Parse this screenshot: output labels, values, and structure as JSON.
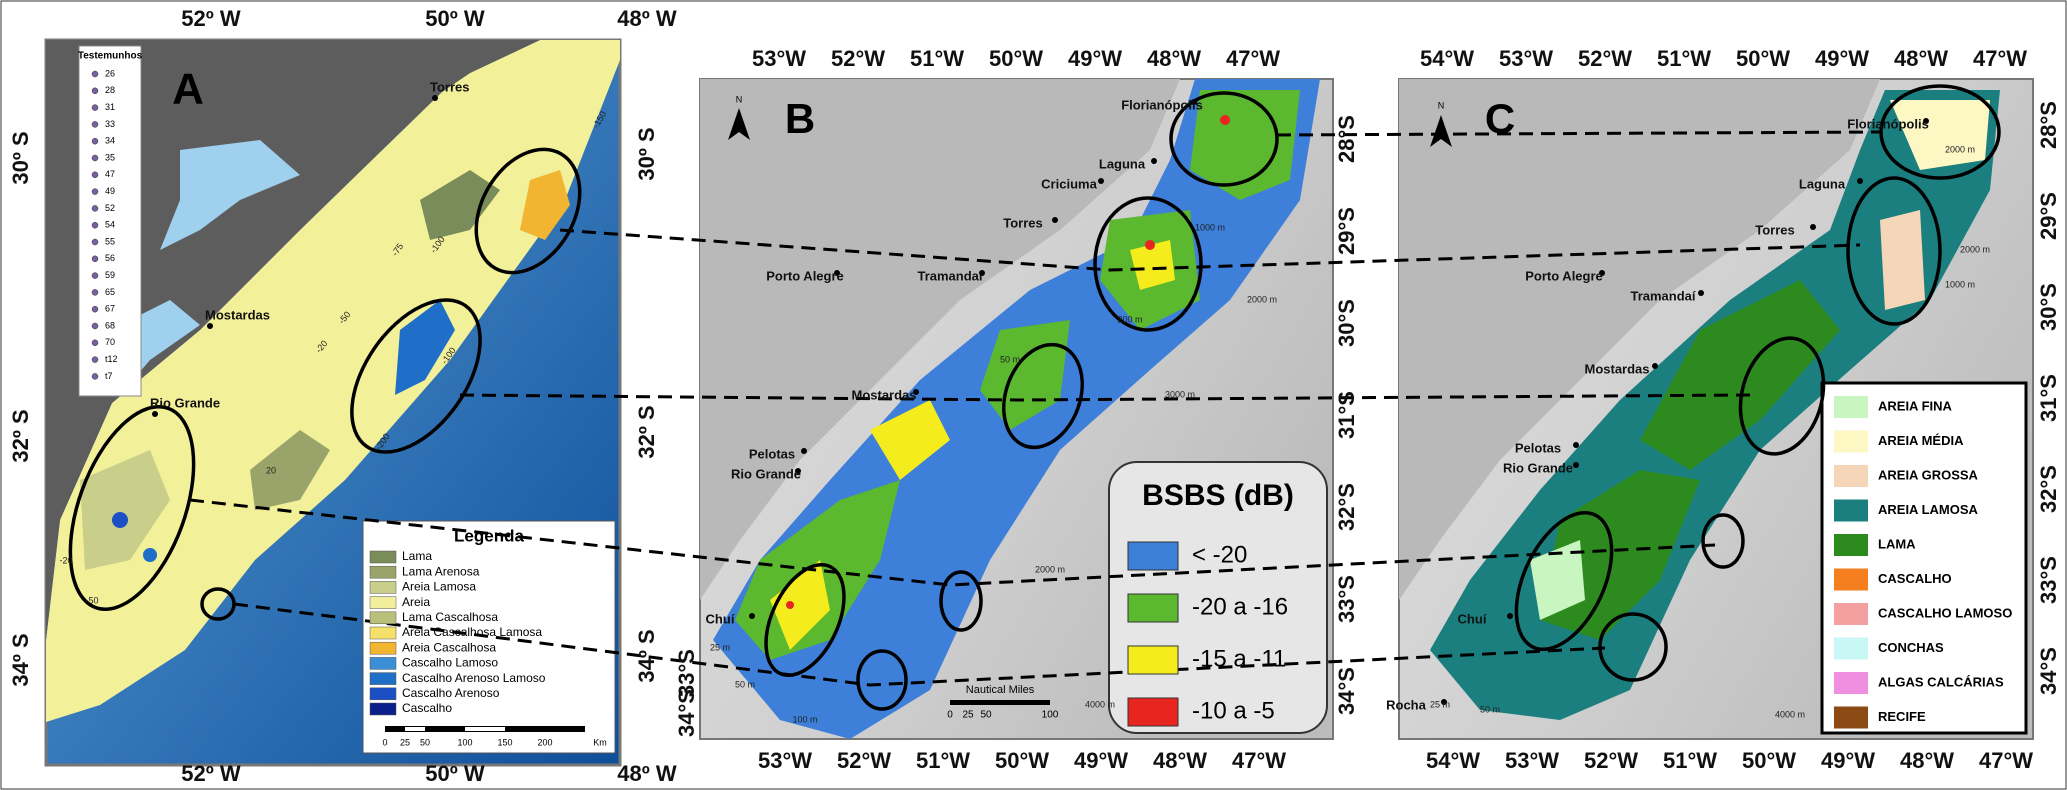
{
  "panel_a": {
    "label": "A",
    "top_ticks": [
      "52º W",
      "50º W",
      "48º W"
    ],
    "bottom_ticks": [
      "52º W",
      "50º W",
      "48º W"
    ],
    "left_ticks": [
      "30º S",
      "32º S",
      "34º S"
    ],
    "right_ticks": [
      "30º S",
      "32º S",
      "34º S"
    ],
    "places": [
      "Torres",
      "Mostardas",
      "Rio Grande"
    ],
    "contour_labels": [
      "-150",
      "-100",
      "-75",
      "-50",
      "-20",
      "-100",
      "-200",
      "-20",
      "-50",
      "20"
    ],
    "cores_title": "Testemunhos",
    "cores": [
      "26",
      "28",
      "31",
      "33",
      "34",
      "35",
      "47",
      "49",
      "52",
      "54",
      "55",
      "56",
      "59",
      "65",
      "67",
      "68",
      "70",
      "t12",
      "t7"
    ],
    "legend_title": "Legenda",
    "legend": [
      {
        "label": "Lama",
        "color": "#7a8c5a"
      },
      {
        "label": "Lama Arenosa",
        "color": "#9aa46a"
      },
      {
        "label": "Areia Lamosa",
        "color": "#c9cf8a"
      },
      {
        "label": "Areia",
        "color": "#f2ef9c"
      },
      {
        "label": "Lama Cascalhosa",
        "color": "#b8c07a"
      },
      {
        "label": "Areia Cascalhosa Lamosa",
        "color": "#f5e06a"
      },
      {
        "label": "Areia Cascalhosa",
        "color": "#f2b531"
      },
      {
        "label": "Cascalho Lamoso",
        "color": "#3b8fd6"
      },
      {
        "label": "Cascalho Arenoso Lamoso",
        "color": "#1f6fc9"
      },
      {
        "label": "Cascalho Arenoso",
        "color": "#1b4fc4"
      },
      {
        "label": "Cascalho",
        "color": "#0b1f8a"
      }
    ],
    "scale": [
      "0",
      "25",
      "50",
      "100",
      "150",
      "200",
      "Km"
    ]
  },
  "panel_b": {
    "label": "B",
    "north": "N",
    "top_ticks": [
      "53°W",
      "52°W",
      "51°W",
      "50°W",
      "49°W",
      "48°W",
      "47°W"
    ],
    "bottom_ticks": [
      "53°W",
      "52°W",
      "51°W",
      "50°W",
      "49°W",
      "48°W",
      "47°W"
    ],
    "left_ticks": [
      "33°S",
      "34°S"
    ],
    "right_ticks": [
      "28°S",
      "29°S",
      "30°S",
      "31°S",
      "32°S",
      "33°S",
      "34°S"
    ],
    "places": [
      "Florianópolis",
      "Laguna",
      "Criciuma",
      "Torres",
      "Porto Alegre",
      "Tramandaí",
      "Mostardas",
      "Pelotas",
      "Rio Grande",
      "Chuí"
    ],
    "isobaths": [
      "2000 m",
      "1000 m",
      "200 m",
      "50 m",
      "3000 m",
      "2000 m",
      "4000 m",
      "25 m",
      "50 m",
      "100 m"
    ],
    "legend_title": "BSBS (dB)",
    "legend": [
      {
        "label": "< -20",
        "color": "#3d7fd9"
      },
      {
        "label": "-20 a -16",
        "color": "#5bb82f"
      },
      {
        "label": "-15 a -11",
        "color": "#f5ec1e"
      },
      {
        "label": "-10 a -5",
        "color": "#e8261f"
      }
    ],
    "scale_title": "Nautical Miles",
    "scale": [
      "0",
      "25",
      "50",
      "100"
    ]
  },
  "panel_c": {
    "label": "C",
    "north": "N",
    "top_ticks": [
      "54°W",
      "53°W",
      "52°W",
      "51°W",
      "50°W",
      "49°W",
      "48°W",
      "47°W"
    ],
    "bottom_ticks": [
      "54°W",
      "53°W",
      "52°W",
      "51°W",
      "50°W",
      "49°W",
      "48°W",
      "47°W"
    ],
    "right_ticks": [
      "28°S",
      "29°S",
      "30°S",
      "31°S",
      "32°S",
      "33°S",
      "34°S"
    ],
    "places": [
      "Florianópolis",
      "Laguna",
      "Torres",
      "Porto Alegre",
      "Tramandaí",
      "Mostardas",
      "Pelotas",
      "Rio Grande",
      "Chuí",
      "Rocha"
    ],
    "isobaths": [
      "2000 m",
      "1000 m",
      "2000 m",
      "4000 m",
      "25 m",
      "50 m"
    ],
    "legend": [
      {
        "label": "AREIA FINA",
        "color": "#c8f5c0"
      },
      {
        "label": "AREIA MÉDIA",
        "color": "#fdf7c3"
      },
      {
        "label": "AREIA GROSSA",
        "color": "#f6d6b8"
      },
      {
        "label": "AREIA LAMOSA",
        "color": "#1b7f7f"
      },
      {
        "label": "LAMA",
        "color": "#2d8a1f"
      },
      {
        "label": "CASCALHO",
        "color": "#f57f1f"
      },
      {
        "label": "CASCALHO LAMOSO",
        "color": "#f4a0a0"
      },
      {
        "label": "CONCHAS",
        "color": "#c9f7f5"
      },
      {
        "label": "ALGAS CALCÁRIAS",
        "color": "#f08ee0"
      },
      {
        "label": "RECIFE",
        "color": "#8b4a14"
      }
    ]
  }
}
